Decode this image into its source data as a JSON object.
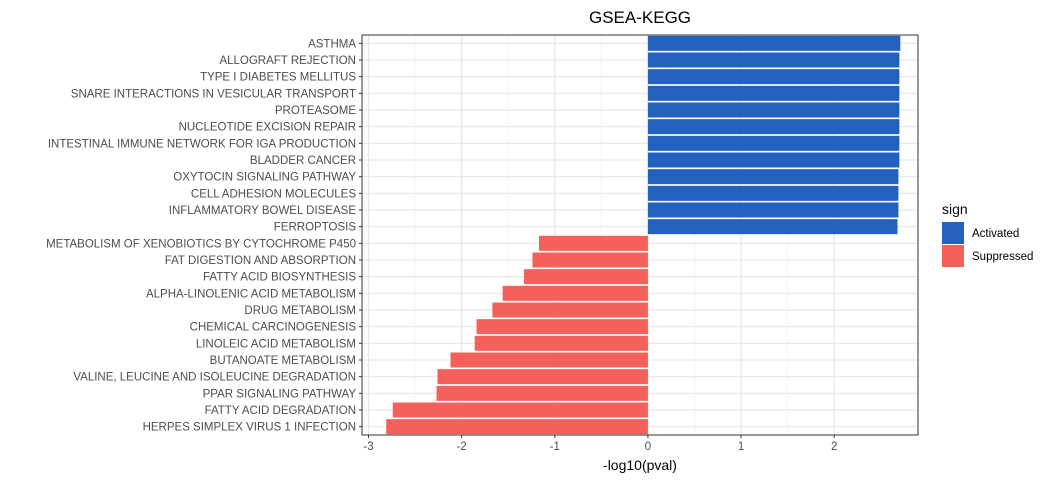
{
  "chart_data": {
    "type": "bar",
    "orientation": "horizontal",
    "title": "GSEA-KEGG",
    "xlabel": "-log10(pval)",
    "ylabel": "",
    "xlim": [
      -3.07,
      2.9
    ],
    "xticks": [
      -3,
      -2,
      -1,
      0,
      1,
      2
    ],
    "xtick_labels": [
      "-3",
      "-2",
      "-1",
      "0",
      "1",
      "2"
    ],
    "grid": true,
    "legend": {
      "title": "sign",
      "position": "right",
      "entries": [
        {
          "label": "Activated",
          "color": "#2361BE"
        },
        {
          "label": "Suppressed",
          "color": "#F4605A"
        }
      ]
    },
    "categories": [
      "ASTHMA",
      "ALLOGRAFT REJECTION",
      "TYPE I DIABETES MELLITUS",
      "SNARE INTERACTIONS IN VESICULAR TRANSPORT",
      "PROTEASOME",
      "NUCLEOTIDE EXCISION REPAIR",
      "INTESTINAL IMMUNE NETWORK FOR IGA PRODUCTION",
      "BLADDER CANCER",
      "OXYTOCIN SIGNALING PATHWAY",
      "CELL ADHESION MOLECULES",
      "INFLAMMATORY BOWEL DISEASE",
      "FERROPTOSIS",
      "METABOLISM OF XENOBIOTICS BY CYTOCHROME P450",
      "FAT DIGESTION AND ABSORPTION",
      "FATTY ACID BIOSYNTHESIS",
      "ALPHA-LINOLENIC ACID METABOLISM",
      "DRUG METABOLISM",
      "CHEMICAL CARCINOGENESIS",
      "LINOLEIC ACID METABOLISM",
      "BUTANOATE METABOLISM",
      "VALINE, LEUCINE AND ISOLEUCINE DEGRADATION",
      "PPAR SIGNALING PATHWAY",
      "FATTY ACID DEGRADATION",
      "HERPES SIMPLEX VIRUS 1 INFECTION"
    ],
    "values": [
      2.71,
      2.7,
      2.7,
      2.7,
      2.7,
      2.7,
      2.7,
      2.7,
      2.69,
      2.69,
      2.69,
      2.68,
      -1.17,
      -1.24,
      -1.33,
      -1.56,
      -1.67,
      -1.84,
      -1.86,
      -2.12,
      -2.26,
      -2.27,
      -2.74,
      -2.81
    ],
    "signs": [
      "Activated",
      "Activated",
      "Activated",
      "Activated",
      "Activated",
      "Activated",
      "Activated",
      "Activated",
      "Activated",
      "Activated",
      "Activated",
      "Activated",
      "Suppressed",
      "Suppressed",
      "Suppressed",
      "Suppressed",
      "Suppressed",
      "Suppressed",
      "Suppressed",
      "Suppressed",
      "Suppressed",
      "Suppressed",
      "Suppressed",
      "Suppressed"
    ]
  }
}
